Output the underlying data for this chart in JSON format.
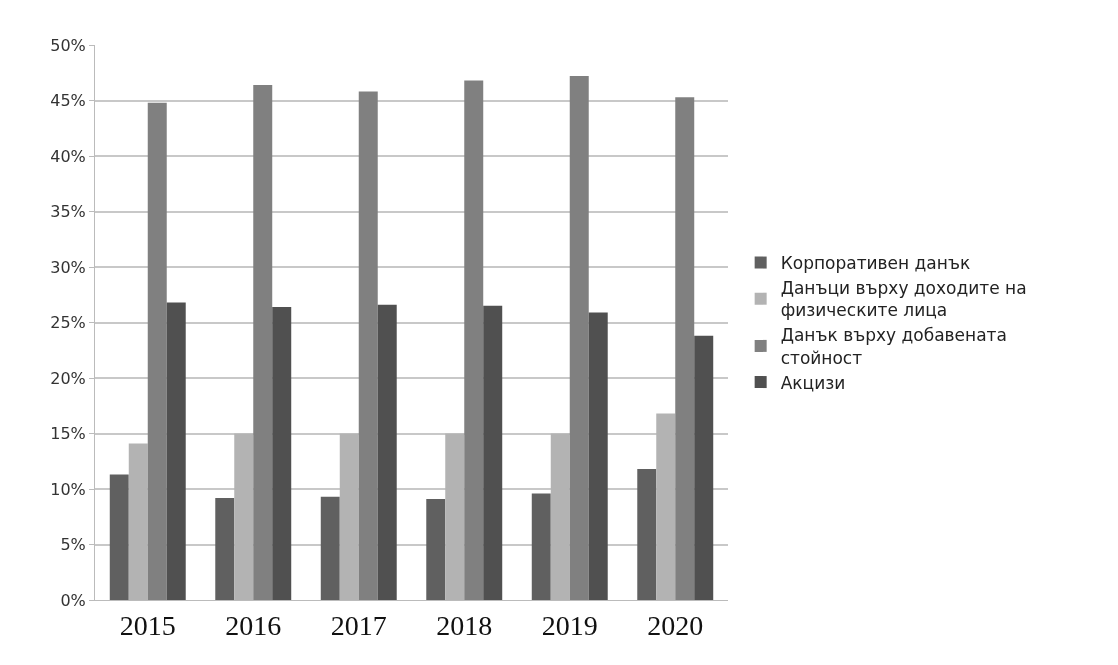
{
  "chart_data": {
    "type": "bar",
    "categories": [
      "2015",
      "2016",
      "2017",
      "2018",
      "2019",
      "2020"
    ],
    "series": [
      {
        "name": "Корпоративен данък",
        "color": "#606060",
        "values": [
          11.3,
          9.2,
          9.3,
          9.1,
          9.6,
          11.8
        ]
      },
      {
        "name": "Данъци върху доходите на физическите лица",
        "color": "#b3b3b3",
        "values": [
          14.1,
          15.0,
          15.0,
          15.0,
          15.0,
          16.8
        ]
      },
      {
        "name": "Данък върху добавената стойност",
        "color": "#808080",
        "values": [
          44.8,
          46.4,
          45.8,
          46.8,
          47.2,
          45.3
        ]
      },
      {
        "name": "Акцизи",
        "color": "#505050",
        "values": [
          26.8,
          26.4,
          26.6,
          26.5,
          25.9,
          23.8
        ]
      }
    ],
    "ylim": [
      0,
      50
    ],
    "yticks": [
      {
        "value": 0,
        "label": "0%"
      },
      {
        "value": 5,
        "label": "5%"
      },
      {
        "value": 10,
        "label": "10%"
      },
      {
        "value": 15,
        "label": "15%"
      },
      {
        "value": 20,
        "label": "20%"
      },
      {
        "value": 25,
        "label": "25%"
      },
      {
        "value": 30,
        "label": "30%"
      },
      {
        "value": 35,
        "label": "35%"
      },
      {
        "value": 40,
        "label": "40%"
      },
      {
        "value": 45,
        "label": "45%"
      },
      {
        "value": 50,
        "label": "50%"
      }
    ],
    "grid": "y",
    "legend": "right"
  }
}
